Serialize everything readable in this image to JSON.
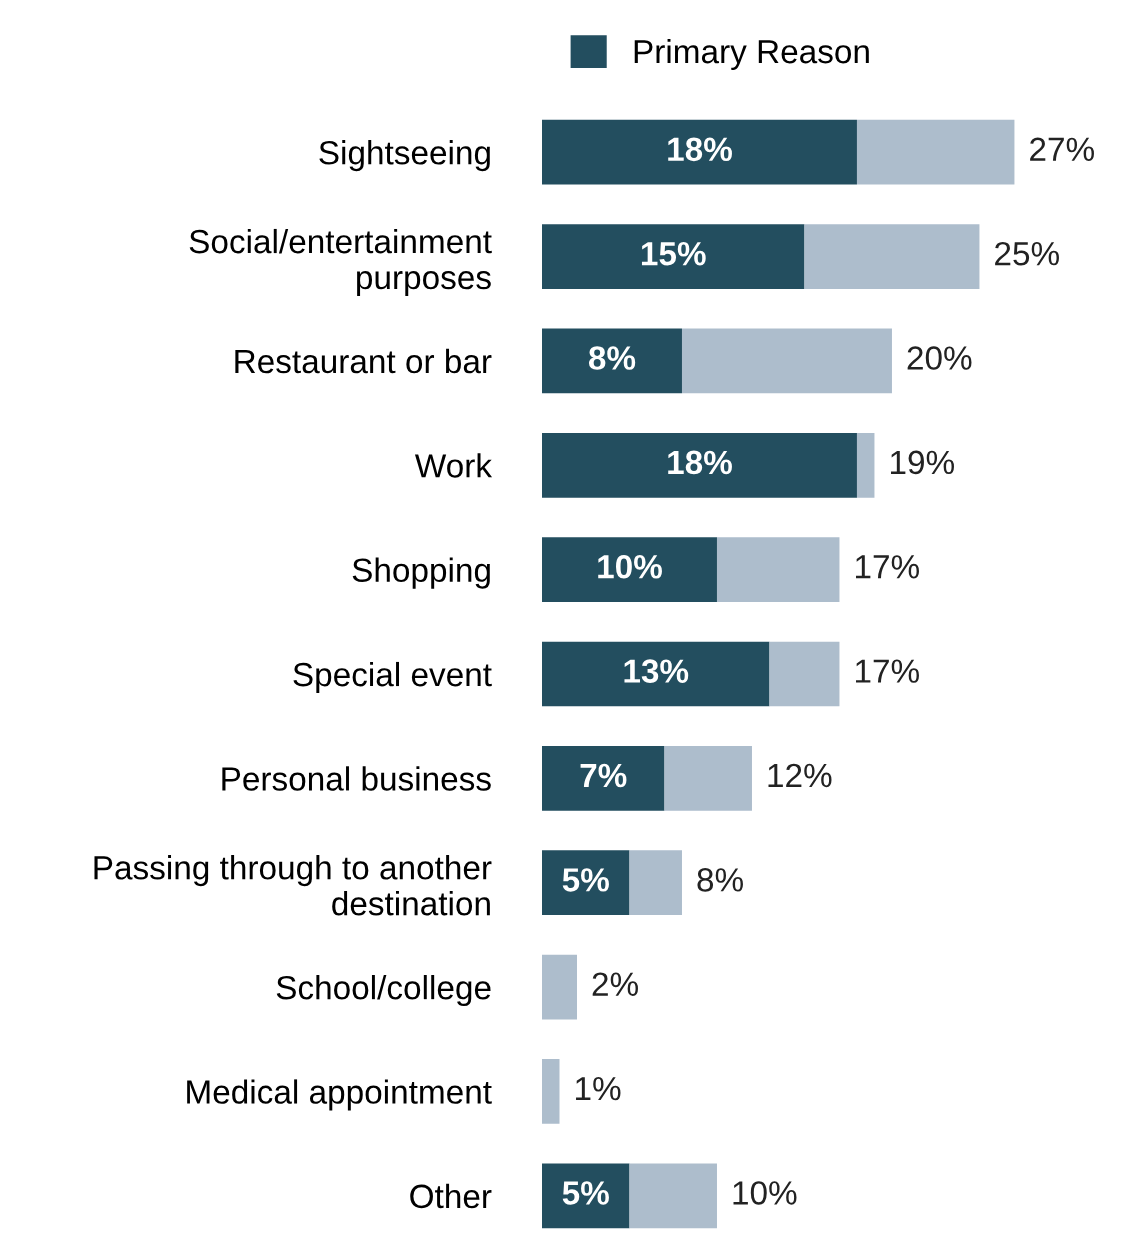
{
  "chart_data": {
    "type": "bar",
    "orientation": "horizontal",
    "stacked": true,
    "categories": [
      "Sightseeing",
      "Social/entertainment\npurposes",
      "Restaurant or bar",
      "Work",
      "Shopping",
      "Special event",
      "Personal business",
      "Passing through to another\ndestination",
      "School/college",
      "Medical appointment",
      "Other"
    ],
    "series": [
      {
        "name": "Primary Reason",
        "color": "#234e5f",
        "values": [
          18,
          15,
          8,
          18,
          10,
          13,
          7,
          5,
          null,
          null,
          5
        ],
        "value_labels": [
          "18%",
          "15%",
          "8%",
          "18%",
          "10%",
          "13%",
          "7%",
          "5%",
          null,
          null,
          "5%"
        ]
      },
      {
        "color": "#adbdcc",
        "values": [
          9,
          10,
          12,
          1,
          7,
          4,
          5,
          3,
          2,
          1,
          5
        ]
      }
    ],
    "totals": [
      "27%",
      "25%",
      "20%",
      "19%",
      "17%",
      "17%",
      "12%",
      "8%",
      "2%",
      "1%",
      "10%"
    ],
    "tick_labels": "y",
    "legend": "top",
    "grid": false
  }
}
